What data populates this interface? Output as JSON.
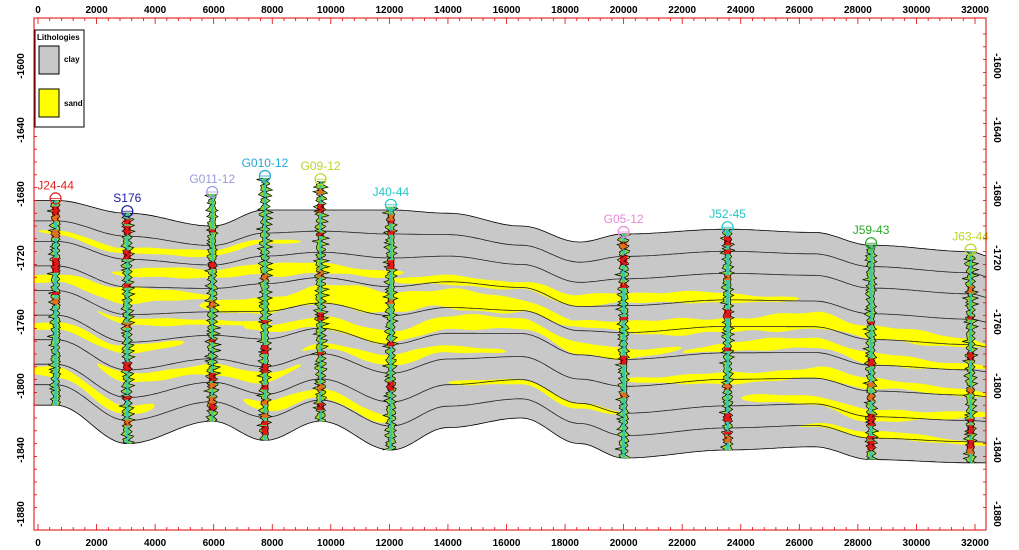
{
  "legend": {
    "title": "Lithologies",
    "items": [
      {
        "label": "clay",
        "color": "#c8c8c8"
      },
      {
        "label": "sand",
        "color": "#ffff00"
      }
    ]
  },
  "axes": {
    "x_ticks": [
      0,
      2000,
      4000,
      6000,
      8000,
      10000,
      12000,
      14000,
      16000,
      18000,
      20000,
      22000,
      24000,
      26000,
      28000,
      30000,
      32000
    ],
    "y_ticks": [
      -1600,
      -1640,
      -1680,
      -1720,
      -1760,
      -1800,
      -1840,
      -1880
    ],
    "x_range": [
      0,
      32000
    ],
    "y_range": [
      -1570,
      -1890
    ],
    "frame_color": "#e00000"
  },
  "wells": [
    {
      "name": "J24-44",
      "x": 600,
      "top": -1684,
      "bottom": -1812,
      "color": "#e02020"
    },
    {
      "name": "S176",
      "x": 3050,
      "top": -1692,
      "bottom": -1836,
      "color": "#1a1aa0"
    },
    {
      "name": "G011-12",
      "x": 5950,
      "top": -1680,
      "bottom": -1822,
      "color": "#9a9ae0"
    },
    {
      "name": "G010-12",
      "x": 7750,
      "top": -1670,
      "bottom": -1834,
      "color": "#20a8d8"
    },
    {
      "name": "G09-12",
      "x": 9650,
      "top": -1672,
      "bottom": -1822,
      "color": "#b8d820"
    },
    {
      "name": "J40-44",
      "x": 12050,
      "top": -1688,
      "bottom": -1840,
      "color": "#20c8c8"
    },
    {
      "name": "G05-12",
      "x": 20000,
      "top": -1705,
      "bottom": -1845,
      "color": "#e888d8"
    },
    {
      "name": "J52-45",
      "x": 23550,
      "top": -1702,
      "bottom": -1840,
      "color": "#20c8c8"
    },
    {
      "name": "J59-43",
      "x": 28450,
      "top": -1712,
      "bottom": -1846,
      "color": "#28a828"
    },
    {
      "name": "J63-44",
      "x": 31850,
      "top": -1716,
      "bottom": -1848,
      "color": "#b8d820"
    }
  ],
  "surfaces": {
    "top": [
      [
        -500,
        -1684
      ],
      [
        600,
        -1684
      ],
      [
        3050,
        -1692
      ],
      [
        5950,
        -1700
      ],
      [
        7750,
        -1690
      ],
      [
        9650,
        -1690
      ],
      [
        12050,
        -1690
      ],
      [
        14000,
        -1692
      ],
      [
        16500,
        -1700
      ],
      [
        18500,
        -1710
      ],
      [
        20000,
        -1705
      ],
      [
        23550,
        -1702
      ],
      [
        26500,
        -1704
      ],
      [
        28450,
        -1712
      ],
      [
        31850,
        -1716
      ],
      [
        32500,
        -1719
      ]
    ],
    "bottom": [
      [
        -500,
        -1812
      ],
      [
        600,
        -1812
      ],
      [
        3050,
        -1836
      ],
      [
        5950,
        -1822
      ],
      [
        7750,
        -1834
      ],
      [
        9650,
        -1822
      ],
      [
        12050,
        -1840
      ],
      [
        14000,
        -1826
      ],
      [
        16500,
        -1820
      ],
      [
        18500,
        -1836
      ],
      [
        20000,
        -1845
      ],
      [
        23550,
        -1840
      ],
      [
        26500,
        -1838
      ],
      [
        28450,
        -1846
      ],
      [
        31850,
        -1848
      ],
      [
        32500,
        -1848
      ]
    ],
    "fractions": [
      0.1,
      0.2,
      0.32,
      0.44,
      0.56,
      0.68,
      0.8,
      0.9
    ]
  },
  "sand_bodies": [
    {
      "x0": 0,
      "x1": 9000,
      "f": 0.15,
      "t": 0.03
    },
    {
      "x0": 2500,
      "x1": 12500,
      "f": 0.26,
      "t": 0.05
    },
    {
      "x0": -500,
      "x1": 6000,
      "f": 0.37,
      "t": 0.06
    },
    {
      "x0": 5500,
      "x1": 18500,
      "f": 0.4,
      "t": 0.09
    },
    {
      "x0": 12000,
      "x1": 26000,
      "f": 0.3,
      "t": 0.05
    },
    {
      "x0": 18000,
      "x1": 32500,
      "f": 0.42,
      "t": 0.07
    },
    {
      "x0": 22000,
      "x1": 32500,
      "f": 0.53,
      "t": 0.05
    },
    {
      "x0": 7000,
      "x1": 22000,
      "f": 0.52,
      "t": 0.06
    },
    {
      "x0": -500,
      "x1": 5000,
      "f": 0.6,
      "t": 0.04
    },
    {
      "x0": 9000,
      "x1": 16000,
      "f": 0.64,
      "t": 0.04
    },
    {
      "x0": 2000,
      "x1": 9000,
      "f": 0.72,
      "t": 0.05
    },
    {
      "x0": 20000,
      "x1": 32500,
      "f": 0.66,
      "t": 0.05
    },
    {
      "x0": -500,
      "x1": 4000,
      "f": 0.84,
      "t": 0.05
    },
    {
      "x0": 7000,
      "x1": 12000,
      "f": 0.86,
      "t": 0.05
    },
    {
      "x0": 24000,
      "x1": 32500,
      "f": 0.78,
      "t": 0.05
    },
    {
      "x0": 14000,
      "x1": 20000,
      "f": 0.8,
      "t": 0.03
    },
    {
      "x0": 2000,
      "x1": 8000,
      "f": 0.48,
      "t": 0.03
    },
    {
      "x0": 26000,
      "x1": 32500,
      "f": 0.9,
      "t": 0.03
    }
  ]
}
